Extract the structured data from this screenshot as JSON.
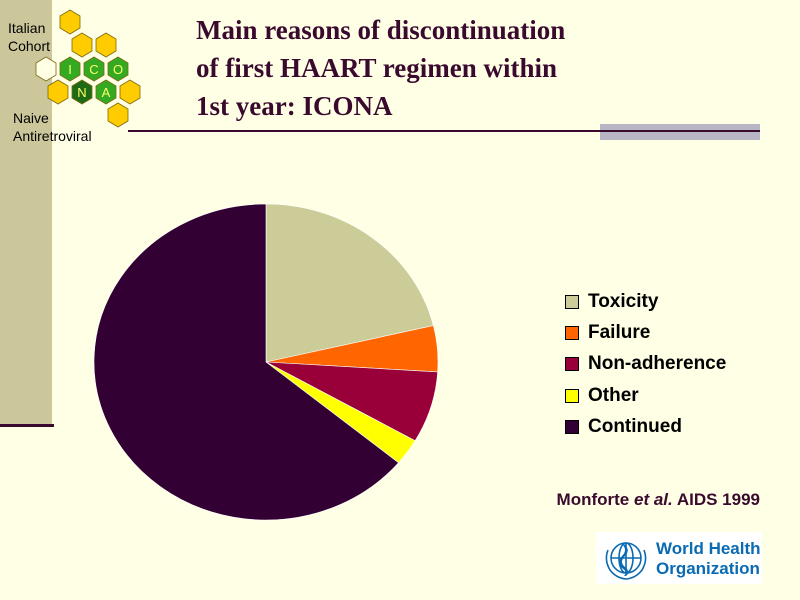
{
  "branding": {
    "cohort_label": "Italian\nCohort",
    "naive_label": "Naive\nAntiretroviral",
    "hex_letters": [
      "I",
      "C",
      "O",
      "N",
      "A"
    ]
  },
  "slide": {
    "title": "Main reasons of discontinuation\nof first HAART regimen within\n1st year: ICONA",
    "citation": {
      "author": "Monforte",
      "etal": "et al.",
      "journal": "AIDS 1999"
    }
  },
  "who_logo": {
    "text": "World Health\nOrganization",
    "icon": "who-emblem-icon"
  },
  "colors": {
    "background": "#ffffe6",
    "sidebar": "#cbc79a",
    "title": "#3a0a2e",
    "hex_yellow": "#ffcc00",
    "hex_green": "#33aa22",
    "who_blue": "#0a6ab2"
  },
  "chart_data": {
    "type": "pie",
    "title": "",
    "start_angle_deg": 0,
    "direction": "clockwise",
    "series": [
      {
        "name": "Toxicity",
        "value": 21.3,
        "color": "#cccc99"
      },
      {
        "name": "Failure",
        "value": 4.7,
        "color": "#ff6600"
      },
      {
        "name": "Non-adherence",
        "value": 7.3,
        "color": "#99003a"
      },
      {
        "name": "Other",
        "value": 2.7,
        "color": "#ffff00"
      },
      {
        "name": "Continued",
        "value": 64.0,
        "color": "#330033"
      }
    ],
    "legend_position": "right"
  }
}
